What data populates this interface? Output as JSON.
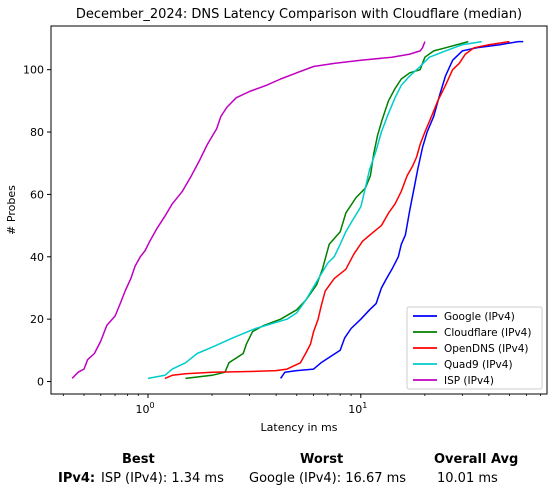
{
  "chart_data": {
    "type": "line",
    "title": "December_2024: DNS Latency Comparison with Cloudflare (median)",
    "xlabel": "Latency in ms",
    "ylabel": "# Probes",
    "xscale": "log",
    "xlim": [
      0.35,
      75
    ],
    "ylim": [
      -4,
      114
    ],
    "xticks": [
      {
        "value": 1,
        "label": "10^0"
      },
      {
        "value": 10,
        "label": "10^1"
      }
    ],
    "yticks": [
      0,
      20,
      40,
      60,
      80,
      100
    ],
    "grid": false,
    "legend_position": "lower right",
    "series": [
      {
        "name": "Google (IPv4)",
        "color": "#0000ff",
        "points": [
          [
            4.2,
            1
          ],
          [
            4.4,
            3
          ],
          [
            5,
            3.5
          ],
          [
            6,
            4
          ],
          [
            6.5,
            6
          ],
          [
            7.2,
            8
          ],
          [
            8,
            10
          ],
          [
            8.4,
            14
          ],
          [
            9,
            17
          ],
          [
            10,
            20
          ],
          [
            11,
            23
          ],
          [
            11.8,
            25
          ],
          [
            12.5,
            30
          ],
          [
            13.2,
            33
          ],
          [
            14,
            36
          ],
          [
            15,
            40
          ],
          [
            15.5,
            44
          ],
          [
            16.2,
            47
          ],
          [
            17,
            55
          ],
          [
            17.8,
            62
          ],
          [
            18.5,
            68
          ],
          [
            19.5,
            75
          ],
          [
            20.5,
            80
          ],
          [
            22,
            85
          ],
          [
            23.5,
            92
          ],
          [
            25,
            98
          ],
          [
            27,
            103
          ],
          [
            30,
            106
          ],
          [
            35,
            107
          ],
          [
            45,
            108
          ],
          [
            55,
            109
          ],
          [
            58,
            109
          ]
        ]
      },
      {
        "name": "Cloudflare (IPv4)",
        "color": "#008000",
        "points": [
          [
            1.5,
            1
          ],
          [
            2,
            2
          ],
          [
            2.3,
            3
          ],
          [
            2.4,
            6
          ],
          [
            2.8,
            9
          ],
          [
            2.9,
            12
          ],
          [
            3.1,
            16
          ],
          [
            3.5,
            18
          ],
          [
            4.2,
            20
          ],
          [
            5,
            23
          ],
          [
            5.5,
            26
          ],
          [
            6.2,
            31
          ],
          [
            6.6,
            36
          ],
          [
            7.1,
            44
          ],
          [
            8,
            48
          ],
          [
            8.5,
            54
          ],
          [
            9.5,
            59
          ],
          [
            10.5,
            62
          ],
          [
            11.1,
            66
          ],
          [
            11.5,
            73
          ],
          [
            12,
            79
          ],
          [
            12.6,
            84
          ],
          [
            13.5,
            90
          ],
          [
            14.5,
            94
          ],
          [
            15.5,
            97
          ],
          [
            17,
            99
          ],
          [
            19,
            100
          ],
          [
            20,
            104
          ],
          [
            22,
            106
          ],
          [
            25,
            107
          ],
          [
            32,
            109
          ]
        ]
      },
      {
        "name": "OpenDNS (IPv4)",
        "color": "#ff0000",
        "points": [
          [
            1.2,
            1
          ],
          [
            1.3,
            2
          ],
          [
            1.5,
            2.5
          ],
          [
            2,
            3
          ],
          [
            3,
            3.2
          ],
          [
            4,
            3.5
          ],
          [
            4.5,
            4
          ],
          [
            5.2,
            6
          ],
          [
            5.5,
            9
          ],
          [
            5.8,
            12
          ],
          [
            6,
            16
          ],
          [
            6.3,
            20
          ],
          [
            6.5,
            24
          ],
          [
            6.8,
            29
          ],
          [
            7.5,
            33
          ],
          [
            8.5,
            36
          ],
          [
            9.3,
            41
          ],
          [
            10.2,
            45
          ],
          [
            11.5,
            48
          ],
          [
            12.5,
            50
          ],
          [
            13.5,
            54
          ],
          [
            14.5,
            57
          ],
          [
            15.5,
            61
          ],
          [
            16.5,
            66
          ],
          [
            17.5,
            69
          ],
          [
            18.3,
            72
          ],
          [
            19,
            76
          ],
          [
            20,
            80
          ],
          [
            21.5,
            85
          ],
          [
            23,
            90
          ],
          [
            25,
            95
          ],
          [
            27,
            100
          ],
          [
            29,
            102
          ],
          [
            31,
            105
          ],
          [
            34,
            107
          ],
          [
            40,
            108
          ],
          [
            50,
            109
          ]
        ]
      },
      {
        "name": "Quad9 (IPv4)",
        "color": "#00cccc",
        "points": [
          [
            1,
            1
          ],
          [
            1.2,
            2
          ],
          [
            1.3,
            4
          ],
          [
            1.5,
            6
          ],
          [
            1.7,
            9
          ],
          [
            2,
            11
          ],
          [
            2.5,
            14
          ],
          [
            3.2,
            17
          ],
          [
            4.5,
            20
          ],
          [
            5,
            22
          ],
          [
            5.5,
            26
          ],
          [
            6.2,
            32
          ],
          [
            7,
            38
          ],
          [
            7.5,
            40
          ],
          [
            8,
            44
          ],
          [
            8.5,
            48
          ],
          [
            9.2,
            52
          ],
          [
            10,
            56
          ],
          [
            10.5,
            62
          ],
          [
            11,
            68
          ],
          [
            11.8,
            74
          ],
          [
            12.5,
            80
          ],
          [
            13.5,
            86
          ],
          [
            14.5,
            91
          ],
          [
            15.5,
            95
          ],
          [
            17,
            98
          ],
          [
            19,
            101
          ],
          [
            21,
            104
          ],
          [
            25,
            106
          ],
          [
            30,
            108
          ],
          [
            37,
            109
          ]
        ]
      },
      {
        "name": "ISP (IPv4)",
        "color": "#c000c0",
        "points": [
          [
            0.44,
            1
          ],
          [
            0.47,
            3
          ],
          [
            0.5,
            4
          ],
          [
            0.52,
            7
          ],
          [
            0.56,
            9
          ],
          [
            0.6,
            13
          ],
          [
            0.64,
            18
          ],
          [
            0.7,
            21
          ],
          [
            0.74,
            25
          ],
          [
            0.78,
            29
          ],
          [
            0.83,
            33
          ],
          [
            0.87,
            37
          ],
          [
            0.92,
            40
          ],
          [
            0.97,
            42
          ],
          [
            1.02,
            45
          ],
          [
            1.1,
            49
          ],
          [
            1.2,
            53
          ],
          [
            1.3,
            57
          ],
          [
            1.45,
            61
          ],
          [
            1.6,
            66
          ],
          [
            1.75,
            71
          ],
          [
            1.9,
            76
          ],
          [
            2.1,
            81
          ],
          [
            2.2,
            85
          ],
          [
            2.35,
            88
          ],
          [
            2.6,
            91
          ],
          [
            3,
            93
          ],
          [
            3.6,
            95
          ],
          [
            4.2,
            97
          ],
          [
            5,
            99
          ],
          [
            6,
            101
          ],
          [
            7.5,
            102
          ],
          [
            10,
            103
          ],
          [
            14,
            104
          ],
          [
            17,
            105
          ],
          [
            19,
            106
          ],
          [
            19.5,
            107
          ],
          [
            20,
            109
          ]
        ]
      }
    ]
  },
  "summary": {
    "headers": {
      "best": "Best",
      "worst": "Worst",
      "avg": "Overall Avg"
    },
    "row_label": "IPv4",
    "colon": ":",
    "best": "ISP (IPv4): 1.34 ms",
    "worst": "Google (IPv4): 16.67 ms",
    "avg": "10.01 ms"
  }
}
